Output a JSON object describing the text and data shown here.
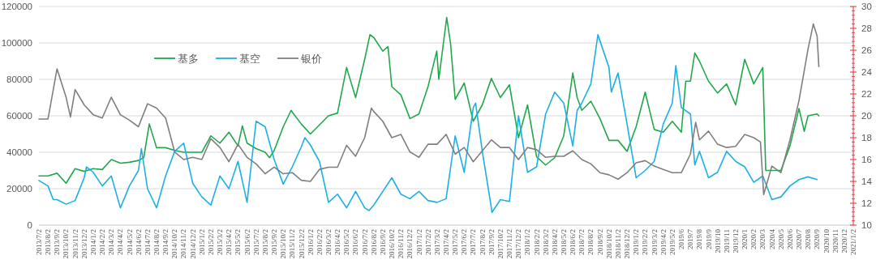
{
  "chart_data": {
    "type": "line",
    "legend": "top left",
    "grid": "y",
    "marker": "none",
    "line_style": "solid",
    "ylim": [
      0,
      120000
    ],
    "yticks": [
      0,
      20000,
      40000,
      60000,
      80000,
      100000,
      120000
    ],
    "y2lim": [
      10,
      30
    ],
    "y2ticks": [
      10,
      12,
      14,
      16,
      18,
      20,
      22,
      24,
      26,
      28,
      30
    ],
    "xlim": [
      "2013-07-02",
      "2021-01-02"
    ],
    "xticks": [
      {
        "value": "2013-07-02",
        "label": "2013/7/2"
      },
      {
        "value": "2013-08-02",
        "label": "2013/8/2"
      },
      {
        "value": "2013-09-02",
        "label": "2013/9/2"
      },
      {
        "value": "2013-10-02",
        "label": "2013/10/2"
      },
      {
        "value": "2013-11-02",
        "label": "2013/11/2"
      },
      {
        "value": "2013-12-02",
        "label": "2013/12/2"
      },
      {
        "value": "2014-01-02",
        "label": "2014/1/2"
      },
      {
        "value": "2014-02-02",
        "label": "2014/2/2"
      },
      {
        "value": "2014-03-02",
        "label": "2014/3/2"
      },
      {
        "value": "2014-04-02",
        "label": "2014/4/2"
      },
      {
        "value": "2014-05-02",
        "label": "2014/5/2"
      },
      {
        "value": "2014-06-02",
        "label": "2014/6/2"
      },
      {
        "value": "2014-07-02",
        "label": "2014/7/2"
      },
      {
        "value": "2014-08-02",
        "label": "2014/8/2"
      },
      {
        "value": "2014-09-02",
        "label": "2014/9/2"
      },
      {
        "value": "2014-10-02",
        "label": "2014/10/2"
      },
      {
        "value": "2014-11-02",
        "label": "2014/11/2"
      },
      {
        "value": "2014-12-02",
        "label": "2014/12/2"
      },
      {
        "value": "2015-01-02",
        "label": "2015/1/2"
      },
      {
        "value": "2015-02-02",
        "label": "2015/2/2"
      },
      {
        "value": "2015-03-02",
        "label": "2015/3/2"
      },
      {
        "value": "2015-04-02",
        "label": "2015/4/2"
      },
      {
        "value": "2015-05-02",
        "label": "2015/5/2"
      },
      {
        "value": "2015-06-02",
        "label": "2015/6/2"
      },
      {
        "value": "2015-07-02",
        "label": "2015/7/2"
      },
      {
        "value": "2015-08-02",
        "label": "2015/8/2"
      },
      {
        "value": "2015-09-02",
        "label": "2015/9/2"
      },
      {
        "value": "2015-10-02",
        "label": "2015/10/2"
      },
      {
        "value": "2015-11-02",
        "label": "2015/11/2"
      },
      {
        "value": "2015-12-02",
        "label": "2015/12/2"
      },
      {
        "value": "2016-01-02",
        "label": "2016/1/2"
      },
      {
        "value": "2016-02-02",
        "label": "2016/2/2"
      },
      {
        "value": "2016-03-02",
        "label": "2016/3/2"
      },
      {
        "value": "2016-04-02",
        "label": "2016/4/2"
      },
      {
        "value": "2016-05-02",
        "label": "2016/5/2"
      },
      {
        "value": "2016-06-02",
        "label": "2016/6/2"
      },
      {
        "value": "2016-07-02",
        "label": "2016/7/2"
      },
      {
        "value": "2016-08-02",
        "label": "2016/8/2"
      },
      {
        "value": "2016-09-02",
        "label": "2016/9/2"
      },
      {
        "value": "2016-10-02",
        "label": "2016/10/2"
      },
      {
        "value": "2016-11-02",
        "label": "2016/11/2"
      },
      {
        "value": "2016-12-02",
        "label": "2016/12/2"
      },
      {
        "value": "2017-01-02",
        "label": "2017/1/2"
      },
      {
        "value": "2017-02-02",
        "label": "2017/2/2"
      },
      {
        "value": "2017-03-02",
        "label": "2017/3/2"
      },
      {
        "value": "2017-04-02",
        "label": "2017/4/2"
      },
      {
        "value": "2017-05-02",
        "label": "2017/5/2"
      },
      {
        "value": "2017-06-02",
        "label": "2017/6/2"
      },
      {
        "value": "2017-07-02",
        "label": "2017/7/2"
      },
      {
        "value": "2017-08-02",
        "label": "2017/8/2"
      },
      {
        "value": "2017-09-02",
        "label": "2017/9/2"
      },
      {
        "value": "2017-10-02",
        "label": "2017/10/2"
      },
      {
        "value": "2017-11-02",
        "label": "2017/11/2"
      },
      {
        "value": "2017-12-02",
        "label": "2017/12/2"
      },
      {
        "value": "2018-01-02",
        "label": "2018/1/2"
      },
      {
        "value": "2018-02-02",
        "label": "2018/2/2"
      },
      {
        "value": "2018-03-02",
        "label": "2018/3/2"
      },
      {
        "value": "2018-04-02",
        "label": "2018/4/2"
      },
      {
        "value": "2018-05-02",
        "label": "2018/5/2"
      },
      {
        "value": "2018-06-02",
        "label": "2018/6/2"
      },
      {
        "value": "2018-07-02",
        "label": "2018/7/2"
      },
      {
        "value": "2018-08-02",
        "label": "2018/8/2"
      },
      {
        "value": "2018-09-02",
        "label": "2018/9/2"
      },
      {
        "value": "2018-10-02",
        "label": "2018/10/2"
      },
      {
        "value": "2018-11-02",
        "label": "2018/11/2"
      },
      {
        "value": "2018-12-02",
        "label": "2018/12/2"
      },
      {
        "value": "2019-01-02",
        "label": "2019/1/2"
      },
      {
        "value": "2019-02-02",
        "label": "2019/2/2"
      },
      {
        "value": "2019-03-02",
        "label": "2019/3/2"
      },
      {
        "value": "2019-04-02",
        "label": "2019/4/2"
      },
      {
        "value": "2019-05-02",
        "label": "2019/5/2"
      },
      {
        "value": "2019-06-02",
        "label": "2019/6"
      },
      {
        "value": "2019-07-02",
        "label": "2019/7"
      },
      {
        "value": "2019-08-02",
        "label": "2019/8"
      },
      {
        "value": "2019-09-02",
        "label": "2019/9"
      },
      {
        "value": "2019-10-02",
        "label": "2019/10"
      },
      {
        "value": "2019-11-02",
        "label": "2019/11"
      },
      {
        "value": "2019-12-02",
        "label": "2019/12"
      },
      {
        "value": "2020-01-02",
        "label": "2020/1"
      },
      {
        "value": "2020-02-02",
        "label": "2020/2"
      },
      {
        "value": "2020-03-02",
        "label": "2020/3"
      },
      {
        "value": "2020-04-02",
        "label": "2020/4"
      },
      {
        "value": "2020-05-02",
        "label": "2020/5"
      },
      {
        "value": "2020-06-02",
        "label": "2020/6"
      },
      {
        "value": "2020-07-02",
        "label": "2020/7"
      },
      {
        "value": "2020-08-02",
        "label": "2020/8"
      },
      {
        "value": "2020-09-02",
        "label": "2020/9"
      },
      {
        "value": "2020-10-02",
        "label": "2020/10"
      },
      {
        "value": "2020-11-02",
        "label": "2020/11"
      },
      {
        "value": "2020-12-02",
        "label": "2020/12"
      },
      {
        "value": "2021-01-02",
        "label": "2021/1/2"
      }
    ],
    "series": [
      {
        "name": "基多",
        "color": "#22a84a",
        "x": [
          "2013-07-02",
          "2013-08-02",
          "2013-09-02",
          "2013-10-02",
          "2013-11-02",
          "2013-12-02",
          "2014-01-02",
          "2014-02-02",
          "2014-03-02",
          "2014-04-02",
          "2014-05-02",
          "2014-06-02",
          "2014-06-20",
          "2014-07-08",
          "2014-08-02",
          "2014-09-02",
          "2014-10-02",
          "2014-11-02",
          "2014-12-02",
          "2015-01-02",
          "2015-02-02",
          "2015-03-02",
          "2015-04-02",
          "2015-05-02",
          "2015-05-17",
          "2015-06-02",
          "2015-07-02",
          "2015-08-02",
          "2015-08-17",
          "2015-09-02",
          "2015-10-02",
          "2015-10-29",
          "2015-11-02",
          "2015-12-02",
          "2016-01-02",
          "2016-02-02",
          "2016-03-02",
          "2016-04-02",
          "2016-05-02",
          "2016-06-02",
          "2016-07-02",
          "2016-07-20",
          "2016-08-02",
          "2016-09-02",
          "2016-09-20",
          "2016-10-02",
          "2016-11-02",
          "2016-12-02",
          "2017-01-02",
          "2017-02-02",
          "2017-03-01",
          "2017-03-08",
          "2017-04-04",
          "2017-04-17",
          "2017-05-02",
          "2017-06-02",
          "2017-07-02",
          "2017-08-02",
          "2017-09-02",
          "2017-10-02",
          "2017-11-02",
          "2017-12-02",
          "2018-01-02",
          "2018-02-02",
          "2018-03-02",
          "2018-04-02",
          "2018-05-02",
          "2018-06-02",
          "2018-06-17",
          "2018-07-02",
          "2018-08-02",
          "2018-09-02",
          "2018-10-02",
          "2018-11-02",
          "2018-12-02",
          "2019-01-02",
          "2019-02-02",
          "2019-03-02",
          "2019-04-02",
          "2019-05-02",
          "2019-06-02",
          "2019-06-17",
          "2019-07-02",
          "2019-07-17",
          "2019-08-02",
          "2019-09-02",
          "2019-10-02",
          "2019-11-02",
          "2019-12-02",
          "2020-01-02",
          "2020-02-02",
          "2020-03-02",
          "2020-03-12",
          "2020-04-02",
          "2020-05-02",
          "2020-06-02",
          "2020-07-02",
          "2020-07-20",
          "2020-08-02",
          "2020-09-02",
          "2020-09-08"
        ],
        "values": [
          27000,
          27000,
          28500,
          23000,
          31000,
          29500,
          31000,
          30500,
          36000,
          34000,
          34500,
          35500,
          37000,
          55500,
          42500,
          42500,
          41000,
          40000,
          40000,
          40000,
          49000,
          45000,
          51000,
          43500,
          54500,
          45000,
          42000,
          40000,
          37000,
          41000,
          54000,
          63000,
          62000,
          55500,
          50000,
          55000,
          60000,
          61500,
          86500,
          70000,
          91000,
          104500,
          103000,
          95500,
          98000,
          76000,
          71500,
          58500,
          61000,
          76000,
          95500,
          80000,
          114000,
          100000,
          69000,
          78000,
          57000,
          66000,
          80500,
          70000,
          77000,
          48000,
          66000,
          37500,
          33000,
          37000,
          49000,
          83500,
          70000,
          63000,
          68000,
          58500,
          46500,
          46500,
          40500,
          54000,
          73000,
          52500,
          51000,
          57000,
          51000,
          79000,
          79000,
          94500,
          90000,
          79000,
          72500,
          77500,
          66000,
          91000,
          77500,
          86500,
          30000,
          30000,
          30000,
          43500,
          64000,
          51500,
          60000,
          61000,
          60000
        ]
      },
      {
        "name": "基空",
        "color": "#1cb0e6",
        "x": [
          "2013-07-02",
          "2013-08-02",
          "2013-08-20",
          "2013-09-02",
          "2013-10-02",
          "2013-11-02",
          "2013-12-02",
          "2013-12-10",
          "2014-01-02",
          "2014-02-02",
          "2014-03-02",
          "2014-04-02",
          "2014-05-02",
          "2014-06-02",
          "2014-06-12",
          "2014-07-02",
          "2014-08-02",
          "2014-09-02",
          "2014-10-02",
          "2014-11-02",
          "2014-12-02",
          "2015-01-02",
          "2015-02-02",
          "2015-03-02",
          "2015-04-02",
          "2015-05-02",
          "2015-06-02",
          "2015-07-02",
          "2015-08-02",
          "2015-09-02",
          "2015-10-02",
          "2015-11-02",
          "2015-12-02",
          "2015-12-14",
          "2016-01-02",
          "2016-02-02",
          "2016-03-02",
          "2016-04-02",
          "2016-05-02",
          "2016-06-02",
          "2016-07-02",
          "2016-07-17",
          "2016-08-02",
          "2016-09-02",
          "2016-10-02",
          "2016-11-02",
          "2016-12-02",
          "2017-01-02",
          "2017-02-02",
          "2017-03-02",
          "2017-04-02",
          "2017-05-02",
          "2017-06-02",
          "2017-07-02",
          "2017-07-10",
          "2017-08-02",
          "2017-09-02",
          "2017-09-04",
          "2017-10-02",
          "2017-11-02",
          "2017-12-02",
          "2018-01-02",
          "2018-02-02",
          "2018-03-02",
          "2018-04-02",
          "2018-05-02",
          "2018-06-02",
          "2018-06-17",
          "2018-07-02",
          "2018-08-02",
          "2018-08-26",
          "2018-10-02",
          "2018-10-10",
          "2018-11-02",
          "2018-12-02",
          "2019-01-02",
          "2019-02-02",
          "2019-03-02",
          "2019-04-02",
          "2019-05-02",
          "2019-05-14",
          "2019-06-02",
          "2019-07-02",
          "2019-07-17",
          "2019-08-02",
          "2019-09-02",
          "2019-10-02",
          "2019-11-02",
          "2019-12-02",
          "2020-01-02",
          "2020-02-02",
          "2020-03-02",
          "2020-04-02",
          "2020-05-02",
          "2020-06-02",
          "2020-07-02",
          "2020-08-02",
          "2020-09-02"
        ],
        "values": [
          24500,
          21500,
          14000,
          14000,
          11500,
          13500,
          26000,
          32000,
          29000,
          21500,
          27000,
          9500,
          21500,
          30000,
          42000,
          20000,
          9500,
          27000,
          40500,
          45000,
          23000,
          15500,
          11000,
          27000,
          20000,
          35000,
          12500,
          57000,
          54000,
          36000,
          22500,
          32000,
          43000,
          48000,
          44000,
          35000,
          12500,
          17000,
          9500,
          18500,
          9500,
          8000,
          11000,
          18500,
          26000,
          17000,
          14500,
          18500,
          13500,
          12500,
          14500,
          49000,
          29000,
          64500,
          67000,
          40500,
          9500,
          7000,
          14000,
          13000,
          60000,
          29000,
          32000,
          61000,
          73000,
          67000,
          43500,
          63000,
          67000,
          77500,
          104500,
          86500,
          73000,
          83500,
          55500,
          26000,
          30000,
          35000,
          55500,
          67000,
          87500,
          64500,
          61000,
          33000,
          40500,
          26000,
          29000,
          40500,
          35000,
          32000,
          23500,
          27000,
          14000,
          15500,
          21500,
          25000,
          26500,
          25000
        ]
      },
      {
        "name": "银价",
        "color": "#7f7f7f",
        "axis": "y2",
        "x": [
          "2013-07-02",
          "2013-08-02",
          "2013-09-02",
          "2013-10-02",
          "2013-10-17",
          "2013-11-02",
          "2013-12-02",
          "2014-01-02",
          "2014-02-02",
          "2014-03-02",
          "2014-04-02",
          "2014-05-02",
          "2014-06-02",
          "2014-07-02",
          "2014-08-02",
          "2014-09-02",
          "2014-10-02",
          "2014-11-02",
          "2014-12-02",
          "2015-01-02",
          "2015-02-02",
          "2015-03-02",
          "2015-04-02",
          "2015-05-02",
          "2015-06-02",
          "2015-07-02",
          "2015-08-02",
          "2015-09-02",
          "2015-10-02",
          "2015-11-02",
          "2015-12-02",
          "2016-01-02",
          "2016-02-02",
          "2016-03-02",
          "2016-04-02",
          "2016-05-02",
          "2016-06-02",
          "2016-07-02",
          "2016-07-25",
          "2016-08-02",
          "2016-09-02",
          "2016-10-02",
          "2016-11-02",
          "2016-12-02",
          "2017-01-02",
          "2017-02-02",
          "2017-03-02",
          "2017-04-02",
          "2017-05-02",
          "2017-06-02",
          "2017-07-02",
          "2017-08-02",
          "2017-09-02",
          "2017-10-02",
          "2017-11-02",
          "2017-12-02",
          "2018-01-02",
          "2018-02-02",
          "2018-03-02",
          "2018-04-02",
          "2018-05-02",
          "2018-06-02",
          "2018-07-02",
          "2018-08-02",
          "2018-09-02",
          "2018-10-02",
          "2018-11-02",
          "2018-12-02",
          "2019-01-02",
          "2019-02-02",
          "2019-03-02",
          "2019-04-02",
          "2019-05-02",
          "2019-06-02",
          "2019-07-02",
          "2019-07-20",
          "2019-08-02",
          "2019-09-02",
          "2019-10-02",
          "2019-11-02",
          "2019-12-02",
          "2020-01-02",
          "2020-02-02",
          "2020-02-25",
          "2020-03-05",
          "2020-04-02",
          "2020-05-02",
          "2020-06-02",
          "2020-07-02",
          "2020-08-02",
          "2020-08-20",
          "2020-09-02",
          "2020-09-08"
        ],
        "values": [
          19.7,
          19.7,
          24.3,
          21.7,
          19.9,
          22.4,
          21.0,
          20.1,
          19.8,
          21.7,
          20.1,
          19.6,
          19.0,
          21.1,
          20.7,
          19.8,
          16.7,
          16.0,
          16.2,
          16.0,
          17.9,
          17.1,
          15.8,
          17.4,
          16.2,
          15.6,
          14.7,
          15.3,
          14.7,
          14.8,
          14.1,
          14.0,
          15.1,
          15.3,
          15.3,
          17.3,
          16.3,
          18.0,
          20.7,
          20.4,
          19.5,
          18.0,
          18.3,
          16.7,
          16.2,
          17.4,
          17.4,
          18.3,
          16.5,
          17.1,
          15.8,
          16.8,
          17.8,
          17.1,
          17.1,
          16.0,
          17.1,
          16.9,
          16.2,
          16.3,
          16.3,
          16.8,
          16.0,
          15.6,
          14.8,
          14.6,
          14.2,
          14.8,
          15.7,
          15.9,
          15.4,
          15.1,
          14.8,
          14.8,
          16.5,
          19.4,
          17.8,
          18.6,
          17.4,
          17.1,
          17.2,
          18.3,
          18.0,
          17.6,
          12.8,
          15.4,
          14.8,
          17.8,
          21.4,
          26.1,
          28.4,
          27.3,
          24.5
        ]
      }
    ]
  }
}
